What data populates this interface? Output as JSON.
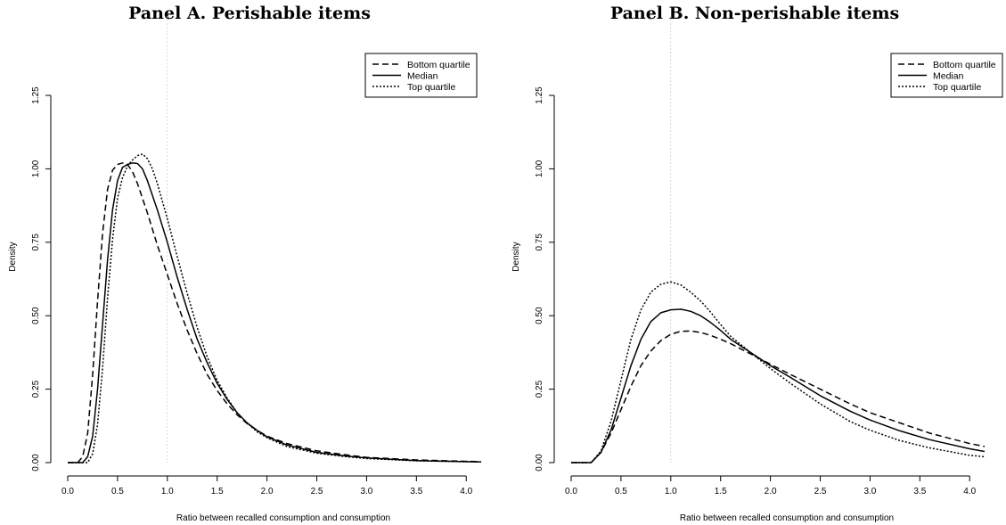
{
  "chart_data": [
    {
      "type": "line",
      "title": "Panel A. Perishable items",
      "xlabel": "Ratio between recalled consumption and consumption",
      "ylabel": "Density",
      "xlim": [
        0.0,
        4.15
      ],
      "ylim": [
        0.0,
        1.25
      ],
      "xticks": [
        "0.0",
        "0.5",
        "1.0",
        "1.5",
        "2.0",
        "2.5",
        "3.0",
        "3.5",
        "4.0"
      ],
      "yticks": [
        "0.00",
        "0.25",
        "0.50",
        "0.75",
        "1.00",
        "1.25"
      ],
      "reference_line_x": 1.0,
      "legend_position": "top-right",
      "series": [
        {
          "name": "Bottom quartile",
          "style": "dashed",
          "x": [
            0.0,
            0.1,
            0.15,
            0.2,
            0.25,
            0.3,
            0.35,
            0.4,
            0.45,
            0.5,
            0.55,
            0.6,
            0.65,
            0.7,
            0.8,
            0.9,
            1.0,
            1.1,
            1.2,
            1.3,
            1.4,
            1.5,
            1.6,
            1.7,
            1.8,
            1.9,
            2.0,
            2.2,
            2.5,
            2.8,
            3.0,
            3.5,
            4.15
          ],
          "y": [
            0.0,
            0.0,
            0.02,
            0.1,
            0.3,
            0.55,
            0.78,
            0.93,
            0.995,
            1.015,
            1.02,
            1.015,
            0.99,
            0.95,
            0.85,
            0.74,
            0.64,
            0.54,
            0.45,
            0.37,
            0.3,
            0.245,
            0.2,
            0.163,
            0.133,
            0.11,
            0.09,
            0.065,
            0.04,
            0.026,
            0.018,
            0.009,
            0.003
          ]
        },
        {
          "name": "Median",
          "style": "solid",
          "x": [
            0.0,
            0.15,
            0.2,
            0.25,
            0.3,
            0.35,
            0.4,
            0.45,
            0.5,
            0.55,
            0.6,
            0.65,
            0.7,
            0.75,
            0.8,
            0.9,
            1.0,
            1.1,
            1.2,
            1.3,
            1.4,
            1.5,
            1.6,
            1.7,
            1.8,
            1.9,
            2.0,
            2.2,
            2.5,
            2.8,
            3.0,
            3.5,
            4.15
          ],
          "y": [
            0.0,
            0.0,
            0.02,
            0.09,
            0.25,
            0.47,
            0.69,
            0.86,
            0.96,
            1.005,
            1.015,
            1.02,
            1.018,
            1.0,
            0.96,
            0.86,
            0.75,
            0.63,
            0.52,
            0.42,
            0.34,
            0.27,
            0.215,
            0.17,
            0.135,
            0.11,
            0.088,
            0.06,
            0.035,
            0.022,
            0.016,
            0.007,
            0.002
          ]
        },
        {
          "name": "Top quartile",
          "style": "dotted",
          "x": [
            0.0,
            0.2,
            0.25,
            0.3,
            0.35,
            0.4,
            0.45,
            0.5,
            0.55,
            0.6,
            0.65,
            0.7,
            0.75,
            0.8,
            0.85,
            0.9,
            1.0,
            1.1,
            1.2,
            1.3,
            1.4,
            1.5,
            1.6,
            1.7,
            1.8,
            1.9,
            2.0,
            2.2,
            2.5,
            2.8,
            3.0,
            3.5,
            4.15
          ],
          "y": [
            0.0,
            0.0,
            0.03,
            0.13,
            0.32,
            0.56,
            0.76,
            0.9,
            0.97,
            1.01,
            1.03,
            1.045,
            1.05,
            1.035,
            1.0,
            0.95,
            0.83,
            0.7,
            0.575,
            0.46,
            0.36,
            0.28,
            0.22,
            0.17,
            0.135,
            0.105,
            0.085,
            0.055,
            0.032,
            0.02,
            0.014,
            0.006,
            0.002
          ]
        }
      ]
    },
    {
      "type": "line",
      "title": "Panel B. Non-perishable items",
      "xlabel": "Ratio between recalled consumption and consumption",
      "ylabel": "Density",
      "xlim": [
        0.0,
        4.15
      ],
      "ylim": [
        0.0,
        1.25
      ],
      "xticks": [
        "0.0",
        "0.5",
        "1.0",
        "1.5",
        "2.0",
        "2.5",
        "3.0",
        "3.5",
        "4.0"
      ],
      "yticks": [
        "0.00",
        "0.25",
        "0.50",
        "0.75",
        "1.00",
        "1.25"
      ],
      "reference_line_x": 1.0,
      "legend_position": "top-right",
      "series": [
        {
          "name": "Bottom quartile",
          "style": "dashed",
          "x": [
            0.0,
            0.2,
            0.3,
            0.4,
            0.5,
            0.6,
            0.7,
            0.8,
            0.9,
            1.0,
            1.1,
            1.2,
            1.3,
            1.4,
            1.5,
            1.6,
            1.8,
            2.0,
            2.2,
            2.5,
            2.8,
            3.0,
            3.3,
            3.6,
            4.0,
            4.15
          ],
          "y": [
            0.0,
            0.0,
            0.035,
            0.1,
            0.18,
            0.26,
            0.33,
            0.38,
            0.415,
            0.437,
            0.447,
            0.448,
            0.443,
            0.433,
            0.42,
            0.405,
            0.37,
            0.335,
            0.3,
            0.25,
            0.2,
            0.17,
            0.135,
            0.1,
            0.065,
            0.055
          ]
        },
        {
          "name": "Median",
          "style": "solid",
          "x": [
            0.0,
            0.2,
            0.3,
            0.4,
            0.5,
            0.6,
            0.7,
            0.8,
            0.9,
            1.0,
            1.1,
            1.2,
            1.3,
            1.4,
            1.5,
            1.6,
            1.8,
            2.0,
            2.2,
            2.5,
            2.8,
            3.0,
            3.3,
            3.6,
            4.0,
            4.15
          ],
          "y": [
            0.0,
            0.0,
            0.035,
            0.11,
            0.22,
            0.33,
            0.42,
            0.48,
            0.51,
            0.52,
            0.522,
            0.515,
            0.5,
            0.477,
            0.45,
            0.42,
            0.375,
            0.33,
            0.29,
            0.228,
            0.175,
            0.145,
            0.108,
            0.078,
            0.047,
            0.038
          ]
        },
        {
          "name": "Top quartile",
          "style": "dotted",
          "x": [
            0.0,
            0.2,
            0.3,
            0.4,
            0.5,
            0.6,
            0.7,
            0.8,
            0.9,
            1.0,
            1.1,
            1.2,
            1.3,
            1.4,
            1.5,
            1.6,
            1.8,
            2.0,
            2.2,
            2.5,
            2.8,
            3.0,
            3.3,
            3.6,
            4.0,
            4.15
          ],
          "y": [
            0.0,
            0.0,
            0.04,
            0.14,
            0.28,
            0.42,
            0.52,
            0.58,
            0.607,
            0.615,
            0.605,
            0.58,
            0.55,
            0.512,
            0.47,
            0.43,
            0.375,
            0.32,
            0.27,
            0.2,
            0.14,
            0.11,
            0.075,
            0.05,
            0.025,
            0.02
          ]
        }
      ]
    }
  ]
}
